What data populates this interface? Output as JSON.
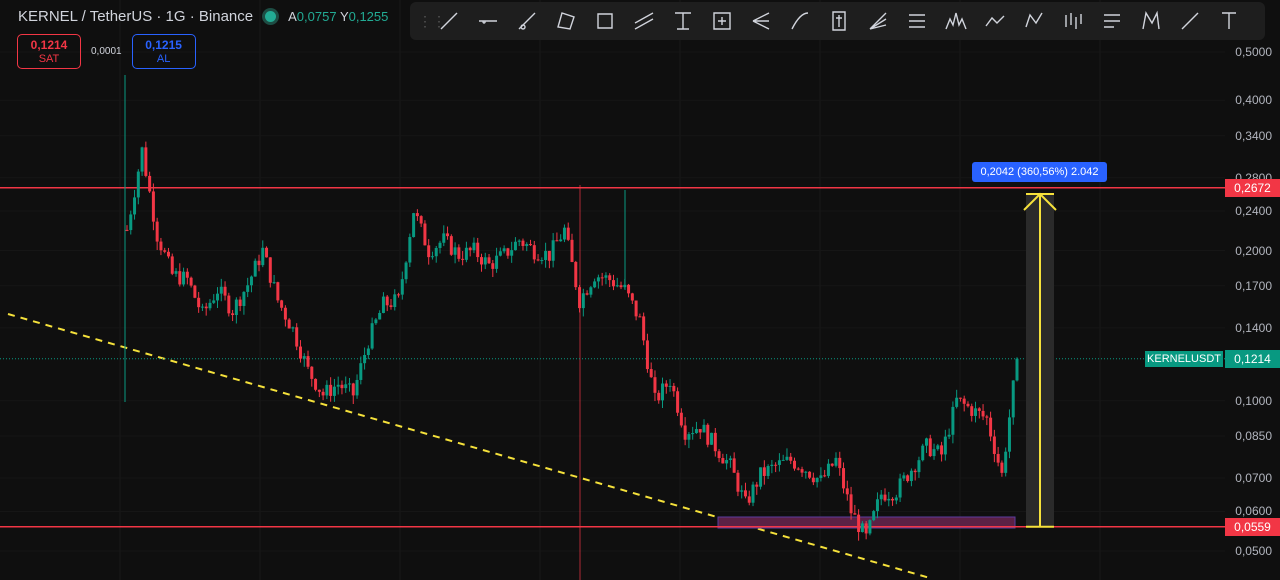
{
  "header": {
    "symbol": "KERNEL / TetherUS · 1G · Binance",
    "open_label": "A",
    "open": "0,0757",
    "high_label": "Y",
    "high": "0,1255"
  },
  "trade": {
    "sell_price": "0,1214",
    "sell_label": "SAT",
    "spread": "0,0001",
    "buy_price": "0,1215",
    "buy_label": "AL"
  },
  "toolbar": {
    "tools": [
      "trend-line",
      "horizontal-ray",
      "ray",
      "polygon",
      "rectangle",
      "parallel-channel",
      "fib-retracement",
      "position",
      "pitchfork",
      "curve",
      "price-label",
      "fib-fan",
      "gann-box",
      "head-shoulders",
      "arrow-path",
      "xabcd-pattern",
      "bar-pattern",
      "projection",
      "cypher-pattern",
      "info-line",
      "text"
    ]
  },
  "price_axis": {
    "scale": "log",
    "ticks": [
      "0,5000",
      "0,4000",
      "0,3400",
      "0,2800",
      "0,2400",
      "0,2000",
      "0,1700",
      "0,1400",
      "0,1000",
      "0,0850",
      "0,0700",
      "0,0600",
      "0,0500"
    ],
    "tick_values": [
      0.5,
      0.4,
      0.34,
      0.28,
      0.24,
      0.2,
      0.17,
      0.14,
      0.1,
      0.085,
      0.07,
      0.06,
      0.05
    ]
  },
  "levels": {
    "resistance": "0,2672",
    "resistance_value": 0.2672,
    "support": "0,0559",
    "support_value": 0.0559
  },
  "last_price": {
    "symbol": "KERNELUSDT",
    "price": "0,1214",
    "value": 0.1214
  },
  "measure": {
    "label": "0,2042 (360,56%) 2.042"
  },
  "colors": {
    "up": "#089981",
    "down": "#f23645",
    "level": "#f23645",
    "trend": "#f5e13b",
    "zone": "#5b2145"
  },
  "price_path": [
    0.22,
    0.318,
    0.215,
    0.179,
    0.175,
    0.149,
    0.167,
    0.152,
    0.171,
    0.2,
    0.159,
    0.139,
    0.115,
    0.103,
    0.108,
    0.103,
    0.132,
    0.156,
    0.159,
    0.241,
    0.2,
    0.21,
    0.196,
    0.2,
    0.187,
    0.196,
    0.21,
    0.2,
    0.196,
    0.22,
    0.159,
    0.179,
    0.175,
    0.167,
    0.145,
    0.1,
    0.11,
    0.087,
    0.089,
    0.081,
    0.074,
    0.062,
    0.071,
    0.074,
    0.076,
    0.073,
    0.069,
    0.076,
    0.06,
    0.053,
    0.065,
    0.066,
    0.073,
    0.081,
    0.078,
    0.1,
    0.096,
    0.092,
    0.071,
    0.1214
  ]
}
